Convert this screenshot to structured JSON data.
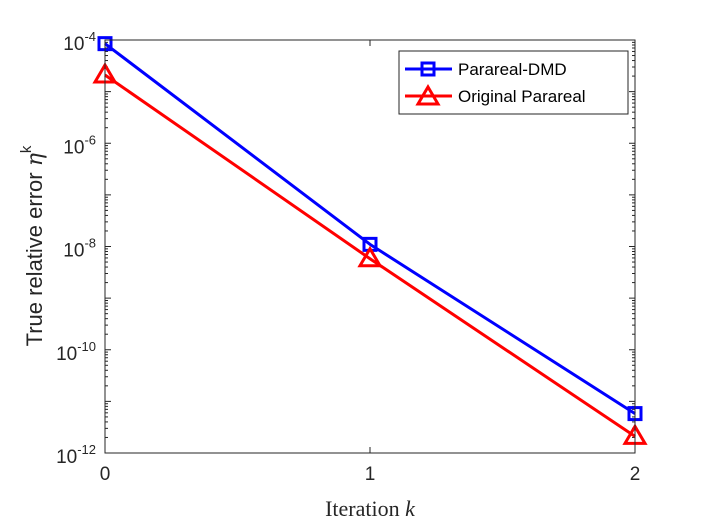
{
  "chart_data": {
    "type": "line",
    "title": "",
    "xlabel": "Iteration",
    "xlabel_var": "k",
    "ylabel": "True relative error",
    "ylabel_sym": "η",
    "ylabel_sup": "k",
    "yscale": "log",
    "x": [
      0,
      1,
      2
    ],
    "xlim": [
      0,
      2
    ],
    "ylim": [
      1e-12,
      0.0001
    ],
    "x_ticks": [
      "0",
      "1",
      "2"
    ],
    "y_ticks": [
      {
        "base": "10",
        "exp": "-12",
        "value": 1e-12
      },
      {
        "base": "10",
        "exp": "-10",
        "value": 1e-10
      },
      {
        "base": "10",
        "exp": "-8",
        "value": 1e-08
      },
      {
        "base": "10",
        "exp": "-6",
        "value": 1e-06
      },
      {
        "base": "10",
        "exp": "-4",
        "value": 0.0001
      }
    ],
    "grid": false,
    "legend_position": "top-right",
    "series": [
      {
        "name": "Parareal-DMD",
        "color": "#0000ff",
        "marker": "square",
        "values": [
          8.5e-05,
          1.1e-08,
          5.8e-12
        ]
      },
      {
        "name": "Original Parareal",
        "color": "#ff0000",
        "marker": "triangle",
        "values": [
          2.1e-05,
          5.8e-09,
          2.1e-12
        ]
      }
    ]
  }
}
